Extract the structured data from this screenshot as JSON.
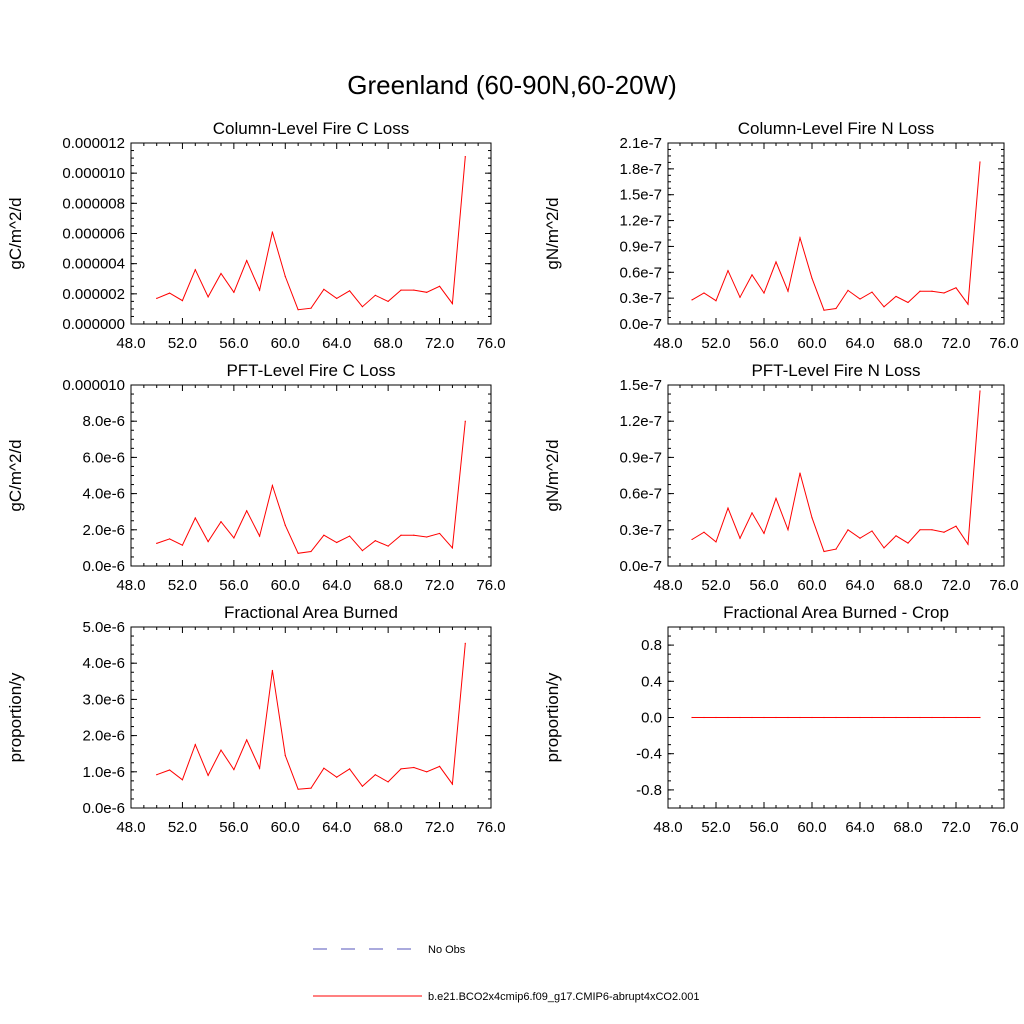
{
  "title": "Greenland (60-90N,60-20W)",
  "colors": {
    "model_line": "#ff0000",
    "obs_line": "#5555bb",
    "axis": "#000000"
  },
  "legend": {
    "obs_label": "No Obs",
    "model_label": "b.e21.BCO2x4cmip6.f09_g17.CMIP6-abrupt4xCO2.001"
  },
  "chart_data": [
    {
      "type": "line",
      "title": "Column-Level Fire C Loss",
      "ylabel": "gC/m^2/d",
      "xlim": [
        48,
        76
      ],
      "ylim": [
        0,
        1.2e-05
      ],
      "xticks": [
        "48.0",
        "52.0",
        "56.0",
        "60.0",
        "64.0",
        "68.0",
        "72.0",
        "76.0"
      ],
      "yticks": [
        {
          "value": 0,
          "label": "0.000000"
        },
        {
          "value": 2e-06,
          "label": "0.000002"
        },
        {
          "value": 4e-06,
          "label": "0.000004"
        },
        {
          "value": 6e-06,
          "label": "0.000006"
        },
        {
          "value": 8e-06,
          "label": "0.000008"
        },
        {
          "value": 1e-05,
          "label": "0.000010"
        },
        {
          "value": 1.2e-05,
          "label": "0.000012"
        }
      ],
      "x": [
        50,
        51,
        52,
        53,
        54,
        55,
        56,
        57,
        58,
        59,
        60,
        61,
        62,
        63,
        64,
        65,
        66,
        67,
        68,
        69,
        70,
        71,
        72,
        73,
        74
      ],
      "series": [
        {
          "values": [
            1.7e-06,
            2.05e-06,
            1.55e-06,
            3.6e-06,
            1.8e-06,
            3.35e-06,
            2.1e-06,
            4.2e-06,
            2.25e-06,
            6.1e-06,
            3.15e-06,
            9.5e-07,
            1.05e-06,
            2.3e-06,
            1.7e-06,
            2.2e-06,
            1.15e-06,
            1.9e-06,
            1.5e-06,
            2.25e-06,
            2.25e-06,
            2.1e-06,
            2.5e-06,
            1.35e-06,
            1.11e-05
          ]
        }
      ]
    },
    {
      "type": "line",
      "title": "Column-Level Fire N Loss",
      "ylabel": "gN/m^2/d",
      "xlim": [
        48,
        76
      ],
      "ylim": [
        0,
        2.1e-07
      ],
      "xticks": [
        "48.0",
        "52.0",
        "56.0",
        "60.0",
        "64.0",
        "68.0",
        "72.0",
        "76.0"
      ],
      "yticks": [
        {
          "value": 0,
          "label": "0.0e-7"
        },
        {
          "value": 3e-08,
          "label": "0.3e-7"
        },
        {
          "value": 6e-08,
          "label": "0.6e-7"
        },
        {
          "value": 9e-08,
          "label": "0.9e-7"
        },
        {
          "value": 1.2e-07,
          "label": "1.2e-7"
        },
        {
          "value": 1.5e-07,
          "label": "1.5e-7"
        },
        {
          "value": 1.8e-07,
          "label": "1.8e-7"
        },
        {
          "value": 2.1e-07,
          "label": "2.1e-7"
        }
      ],
      "x": [
        50,
        51,
        52,
        53,
        54,
        55,
        56,
        57,
        58,
        59,
        60,
        61,
        62,
        63,
        64,
        65,
        66,
        67,
        68,
        69,
        70,
        71,
        72,
        73,
        74
      ],
      "series": [
        {
          "values": [
            2.8e-08,
            3.6e-08,
            2.7e-08,
            6.2e-08,
            3.1e-08,
            5.7e-08,
            3.6e-08,
            7.2e-08,
            3.8e-08,
            1e-07,
            5.3e-08,
            1.6e-08,
            1.8e-08,
            3.9e-08,
            2.9e-08,
            3.7e-08,
            2e-08,
            3.2e-08,
            2.5e-08,
            3.8e-08,
            3.8e-08,
            3.6e-08,
            4.2e-08,
            2.3e-08,
            1.88e-07
          ]
        }
      ]
    },
    {
      "type": "line",
      "title": "PFT-Level Fire C Loss",
      "ylabel": "gC/m^2/d",
      "xlim": [
        48,
        76
      ],
      "ylim": [
        0,
        1e-05
      ],
      "xticks": [
        "48.0",
        "52.0",
        "56.0",
        "60.0",
        "64.0",
        "68.0",
        "72.0",
        "76.0"
      ],
      "yticks": [
        {
          "value": 0,
          "label": "0.0e-6"
        },
        {
          "value": 2e-06,
          "label": "2.0e-6"
        },
        {
          "value": 4e-06,
          "label": "4.0e-6"
        },
        {
          "value": 6e-06,
          "label": "6.0e-6"
        },
        {
          "value": 8e-06,
          "label": "8.0e-6"
        },
        {
          "value": 1e-05,
          "label": "0.000010"
        }
      ],
      "x": [
        50,
        51,
        52,
        53,
        54,
        55,
        56,
        57,
        58,
        59,
        60,
        61,
        62,
        63,
        64,
        65,
        66,
        67,
        68,
        69,
        70,
        71,
        72,
        73,
        74
      ],
      "series": [
        {
          "values": [
            1.25e-06,
            1.5e-06,
            1.15e-06,
            2.65e-06,
            1.35e-06,
            2.45e-06,
            1.55e-06,
            3.05e-06,
            1.65e-06,
            4.45e-06,
            2.25e-06,
            7e-07,
            8e-07,
            1.7e-06,
            1.3e-06,
            1.65e-06,
            8.5e-07,
            1.4e-06,
            1.1e-06,
            1.7e-06,
            1.7e-06,
            1.6e-06,
            1.8e-06,
            1e-06,
            8e-06
          ]
        }
      ]
    },
    {
      "type": "line",
      "title": "PFT-Level Fire N Loss",
      "ylabel": "gN/m^2/d",
      "xlim": [
        48,
        76
      ],
      "ylim": [
        0,
        1.5e-07
      ],
      "xticks": [
        "48.0",
        "52.0",
        "56.0",
        "60.0",
        "64.0",
        "68.0",
        "72.0",
        "76.0"
      ],
      "yticks": [
        {
          "value": 0,
          "label": "0.0e-7"
        },
        {
          "value": 3e-08,
          "label": "0.3e-7"
        },
        {
          "value": 6e-08,
          "label": "0.6e-7"
        },
        {
          "value": 9e-08,
          "label": "0.9e-7"
        },
        {
          "value": 1.2e-07,
          "label": "1.2e-7"
        },
        {
          "value": 1.5e-07,
          "label": "1.5e-7"
        }
      ],
      "x": [
        50,
        51,
        52,
        53,
        54,
        55,
        56,
        57,
        58,
        59,
        60,
        61,
        62,
        63,
        64,
        65,
        66,
        67,
        68,
        69,
        70,
        71,
        72,
        73,
        74
      ],
      "series": [
        {
          "values": [
            2.2e-08,
            2.8e-08,
            2e-08,
            4.8e-08,
            2.3e-08,
            4.4e-08,
            2.7e-08,
            5.6e-08,
            3e-08,
            7.7e-08,
            4e-08,
            1.2e-08,
            1.4e-08,
            3e-08,
            2.3e-08,
            2.9e-08,
            1.5e-08,
            2.5e-08,
            1.9e-08,
            3e-08,
            3e-08,
            2.8e-08,
            3.3e-08,
            1.8e-08,
            1.45e-07
          ]
        }
      ]
    },
    {
      "type": "line",
      "title": "Fractional Area Burned",
      "ylabel": "proportion/y",
      "xlim": [
        48,
        76
      ],
      "ylim": [
        0,
        5e-06
      ],
      "xticks": [
        "48.0",
        "52.0",
        "56.0",
        "60.0",
        "64.0",
        "68.0",
        "72.0",
        "76.0"
      ],
      "yticks": [
        {
          "value": 0,
          "label": "0.0e-6"
        },
        {
          "value": 1e-06,
          "label": "1.0e-6"
        },
        {
          "value": 2e-06,
          "label": "2.0e-6"
        },
        {
          "value": 3e-06,
          "label": "3.0e-6"
        },
        {
          "value": 4e-06,
          "label": "4.0e-6"
        },
        {
          "value": 5e-06,
          "label": "5.0e-6"
        }
      ],
      "x": [
        50,
        51,
        52,
        53,
        54,
        55,
        56,
        57,
        58,
        59,
        60,
        61,
        62,
        63,
        64,
        65,
        66,
        67,
        68,
        69,
        70,
        71,
        72,
        73,
        74
      ],
      "series": [
        {
          "values": [
            9.2e-07,
            1.05e-06,
            7.8e-07,
            1.75e-06,
            9e-07,
            1.6e-06,
            1.06e-06,
            1.88e-06,
            1.1e-06,
            3.8e-06,
            1.45e-06,
            5.2e-07,
            5.5e-07,
            1.1e-06,
            8.5e-07,
            1.08e-06,
            6e-07,
            9.2e-07,
            7.2e-07,
            1.08e-06,
            1.12e-06,
            1e-06,
            1.15e-06,
            6.6e-07,
            4.55e-06
          ]
        }
      ]
    },
    {
      "type": "line",
      "title": "Fractional Area Burned - Crop",
      "ylabel": "proportion/y",
      "xlim": [
        48,
        76
      ],
      "ylim": [
        -1,
        1
      ],
      "xticks": [
        "48.0",
        "52.0",
        "56.0",
        "60.0",
        "64.0",
        "68.0",
        "72.0",
        "76.0"
      ],
      "yticks": [
        {
          "value": -0.8,
          "label": "-0.8"
        },
        {
          "value": -0.4,
          "label": "-0.4"
        },
        {
          "value": 0,
          "label": "0.0"
        },
        {
          "value": 0.4,
          "label": "0.4"
        },
        {
          "value": 0.8,
          "label": "0.8"
        }
      ],
      "x": [
        50,
        51,
        52,
        53,
        54,
        55,
        56,
        57,
        58,
        59,
        60,
        61,
        62,
        63,
        64,
        65,
        66,
        67,
        68,
        69,
        70,
        71,
        72,
        73,
        74
      ],
      "series": [
        {
          "values": [
            0,
            0,
            0,
            0,
            0,
            0,
            0,
            0,
            0,
            0,
            0,
            0,
            0,
            0,
            0,
            0,
            0,
            0,
            0,
            0,
            0,
            0,
            0,
            0,
            0
          ]
        }
      ]
    }
  ]
}
